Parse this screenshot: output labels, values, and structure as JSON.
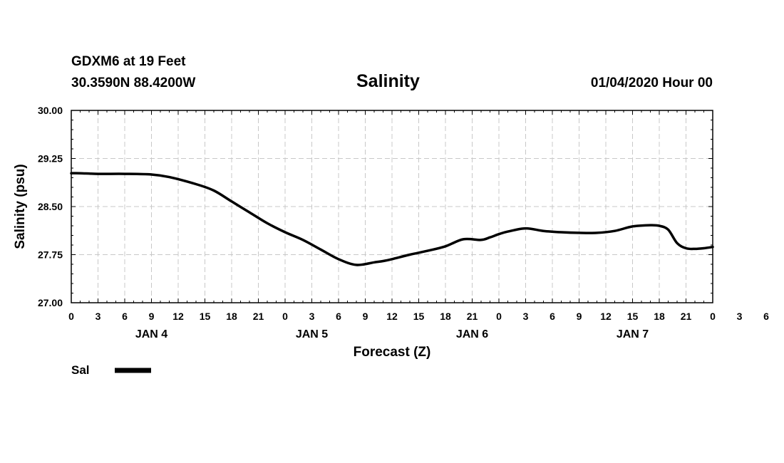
{
  "header": {
    "station": "GDXM6 at 19 Feet",
    "location": "30.3590N 88.4200W",
    "title": "Salinity",
    "run": "01/04/2020 Hour 00"
  },
  "chart_data": {
    "type": "line",
    "title": "Salinity",
    "xlabel": "Forecast (Z)",
    "ylabel": "Salinity (psu)",
    "xlim": [
      0,
      72
    ],
    "ylim": [
      27.0,
      30.0
    ],
    "yticks": [
      "27.00",
      "27.75",
      "28.50",
      "29.25",
      "30.00"
    ],
    "ytick_values": [
      27.0,
      27.75,
      28.5,
      29.25,
      30.0
    ],
    "xtick_labels": [
      "0",
      "3",
      "6",
      "9",
      "12",
      "15",
      "18",
      "21",
      "0",
      "3",
      "6",
      "9",
      "12",
      "15",
      "18",
      "21",
      "0",
      "3",
      "6",
      "9",
      "12",
      "15",
      "18",
      "21",
      "0",
      "3",
      "6",
      "9",
      "12",
      "15",
      "18",
      "21",
      "0"
    ],
    "day_labels": [
      {
        "label": "JAN 4",
        "hour": 9
      },
      {
        "label": "JAN 5",
        "hour": 27
      },
      {
        "label": "JAN 6",
        "hour": 45
      },
      {
        "label": "JAN 7",
        "hour": 63
      }
    ],
    "grid": true,
    "legend": "bottom-left",
    "series": [
      {
        "name": "Sal",
        "color": "#000000",
        "x": [
          0,
          1,
          3,
          6,
          9,
          11,
          14,
          16,
          18,
          20,
          22,
          24,
          26,
          28,
          30,
          32,
          34,
          35,
          36,
          38,
          40,
          42,
          44,
          46,
          47,
          48,
          49,
          51,
          53,
          55,
          57,
          59,
          61,
          63,
          65,
          66,
          67,
          68,
          69,
          70,
          71,
          72
        ],
        "values": [
          29.02,
          29.02,
          29.01,
          29.01,
          29.0,
          28.96,
          28.85,
          28.75,
          28.58,
          28.41,
          28.24,
          28.1,
          27.98,
          27.83,
          27.68,
          27.59,
          27.63,
          27.65,
          27.68,
          27.75,
          27.81,
          27.88,
          27.99,
          27.98,
          28.02,
          28.07,
          28.11,
          28.16,
          28.12,
          28.1,
          28.09,
          28.09,
          28.12,
          28.19,
          28.21,
          28.2,
          28.14,
          27.93,
          27.85,
          27.84,
          27.85,
          27.87
        ]
      }
    ]
  }
}
